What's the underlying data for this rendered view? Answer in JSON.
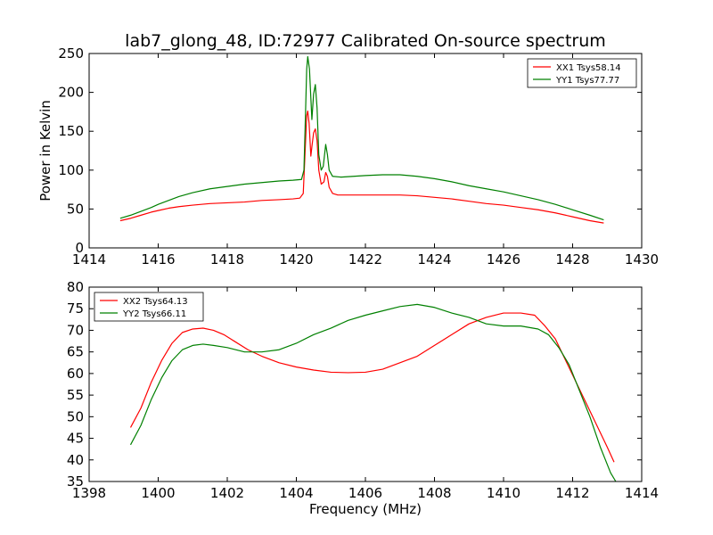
{
  "figure": {
    "title": "lab7_glong_48, ID:72977 Calibrated On-source spectrum",
    "xlabel": "Frequency (MHz)"
  },
  "chart_data": [
    {
      "type": "line",
      "title": "lab7_glong_48, ID:72977 Calibrated On-source spectrum",
      "xlabel": "",
      "ylabel": "Power in Kelvin",
      "xlim": [
        1414,
        1430
      ],
      "ylim": [
        0,
        250
      ],
      "xticks": [
        1414,
        1416,
        1418,
        1420,
        1422,
        1424,
        1426,
        1428,
        1430
      ],
      "yticks": [
        0,
        50,
        100,
        150,
        200,
        250
      ],
      "grid": false,
      "legend_position": "top-right",
      "series": [
        {
          "name": "XX1 Tsys58.14",
          "color": "#ff0000",
          "points": [
            [
              1414.9,
              35
            ],
            [
              1415.2,
              38
            ],
            [
              1415.5,
              42
            ],
            [
              1415.8,
              46
            ],
            [
              1416.0,
              48
            ],
            [
              1416.3,
              51
            ],
            [
              1416.6,
              53
            ],
            [
              1417.0,
              55
            ],
            [
              1417.5,
              57
            ],
            [
              1418.0,
              58
            ],
            [
              1418.5,
              59
            ],
            [
              1419.0,
              61
            ],
            [
              1419.5,
              62
            ],
            [
              1419.9,
              63
            ],
            [
              1420.1,
              64
            ],
            [
              1420.2,
              70
            ],
            [
              1420.25,
              120
            ],
            [
              1420.3,
              170
            ],
            [
              1420.33,
              176
            ],
            [
              1420.37,
              160
            ],
            [
              1420.42,
              118
            ],
            [
              1420.45,
              130
            ],
            [
              1420.5,
              148
            ],
            [
              1420.55,
              153
            ],
            [
              1420.6,
              138
            ],
            [
              1420.65,
              100
            ],
            [
              1420.72,
              82
            ],
            [
              1420.8,
              85
            ],
            [
              1420.85,
              97
            ],
            [
              1420.9,
              92
            ],
            [
              1420.95,
              78
            ],
            [
              1421.05,
              70
            ],
            [
              1421.2,
              68
            ],
            [
              1421.5,
              68
            ],
            [
              1422.0,
              68
            ],
            [
              1422.5,
              68
            ],
            [
              1423.0,
              68
            ],
            [
              1423.5,
              67
            ],
            [
              1424.0,
              65
            ],
            [
              1424.5,
              63
            ],
            [
              1425.0,
              60
            ],
            [
              1425.5,
              57
            ],
            [
              1426.0,
              55
            ],
            [
              1426.5,
              52
            ],
            [
              1427.0,
              49
            ],
            [
              1427.5,
              45
            ],
            [
              1428.0,
              40
            ],
            [
              1428.5,
              35
            ],
            [
              1428.9,
              32
            ]
          ]
        },
        {
          "name": "YY1 Tsys77.77",
          "color": "#008000",
          "points": [
            [
              1414.9,
              38
            ],
            [
              1415.2,
              42
            ],
            [
              1415.5,
              47
            ],
            [
              1415.8,
              52
            ],
            [
              1416.0,
              56
            ],
            [
              1416.3,
              61
            ],
            [
              1416.6,
              66
            ],
            [
              1417.0,
              71
            ],
            [
              1417.5,
              76
            ],
            [
              1418.0,
              79
            ],
            [
              1418.5,
              82
            ],
            [
              1419.0,
              84
            ],
            [
              1419.5,
              86
            ],
            [
              1419.9,
              87
            ],
            [
              1420.15,
              88
            ],
            [
              1420.22,
              100
            ],
            [
              1420.27,
              180
            ],
            [
              1420.3,
              230
            ],
            [
              1420.33,
              246
            ],
            [
              1420.38,
              230
            ],
            [
              1420.45,
              165
            ],
            [
              1420.5,
              198
            ],
            [
              1420.55,
              210
            ],
            [
              1420.6,
              180
            ],
            [
              1420.65,
              120
            ],
            [
              1420.72,
              100
            ],
            [
              1420.78,
              105
            ],
            [
              1420.85,
              133
            ],
            [
              1420.9,
              120
            ],
            [
              1420.95,
              100
            ],
            [
              1421.05,
              92
            ],
            [
              1421.3,
              91
            ],
            [
              1422.0,
              93
            ],
            [
              1422.5,
              94
            ],
            [
              1423.0,
              94
            ],
            [
              1423.5,
              92
            ],
            [
              1424.0,
              89
            ],
            [
              1424.5,
              85
            ],
            [
              1425.0,
              80
            ],
            [
              1425.5,
              76
            ],
            [
              1426.0,
              72
            ],
            [
              1426.5,
              67
            ],
            [
              1427.0,
              62
            ],
            [
              1427.5,
              56
            ],
            [
              1428.0,
              49
            ],
            [
              1428.5,
              42
            ],
            [
              1428.9,
              36
            ]
          ]
        }
      ]
    },
    {
      "type": "line",
      "title": "",
      "xlabel": "Frequency (MHz)",
      "ylabel": "",
      "xlim": [
        1398,
        1414
      ],
      "ylim": [
        35,
        80
      ],
      "xticks": [
        1398,
        1400,
        1402,
        1404,
        1406,
        1408,
        1410,
        1412,
        1414
      ],
      "yticks": [
        35,
        40,
        45,
        50,
        55,
        60,
        65,
        70,
        75,
        80
      ],
      "grid": false,
      "legend_position": "top-left",
      "series": [
        {
          "name": "XX2 Tsys64.13",
          "color": "#ff0000",
          "points": [
            [
              1399.2,
              47.5
            ],
            [
              1399.5,
              52
            ],
            [
              1399.8,
              58
            ],
            [
              1400.1,
              63
            ],
            [
              1400.4,
              67
            ],
            [
              1400.7,
              69.5
            ],
            [
              1401.0,
              70.3
            ],
            [
              1401.3,
              70.5
            ],
            [
              1401.6,
              70
            ],
            [
              1401.9,
              69
            ],
            [
              1402.2,
              67.5
            ],
            [
              1402.6,
              65.5
            ],
            [
              1403.0,
              64
            ],
            [
              1403.5,
              62.5
            ],
            [
              1404.0,
              61.5
            ],
            [
              1404.5,
              60.8
            ],
            [
              1405.0,
              60.3
            ],
            [
              1405.5,
              60.2
            ],
            [
              1406.0,
              60.3
            ],
            [
              1406.5,
              61
            ],
            [
              1407.0,
              62.5
            ],
            [
              1407.5,
              64
            ],
            [
              1408.0,
              66.5
            ],
            [
              1408.5,
              69
            ],
            [
              1409.0,
              71.5
            ],
            [
              1409.5,
              73
            ],
            [
              1410.0,
              74
            ],
            [
              1410.5,
              74
            ],
            [
              1410.9,
              73.5
            ],
            [
              1411.2,
              71
            ],
            [
              1411.5,
              68
            ],
            [
              1411.8,
              63
            ],
            [
              1412.1,
              58
            ],
            [
              1412.4,
              53
            ],
            [
              1412.7,
              48
            ],
            [
              1413.0,
              43
            ],
            [
              1413.2,
              39.5
            ]
          ]
        },
        {
          "name": "YY2 Tsys66.11",
          "color": "#008000",
          "points": [
            [
              1399.2,
              43.5
            ],
            [
              1399.5,
              48
            ],
            [
              1399.8,
              54
            ],
            [
              1400.1,
              59
            ],
            [
              1400.4,
              63
            ],
            [
              1400.7,
              65.5
            ],
            [
              1401.0,
              66.5
            ],
            [
              1401.3,
              66.8
            ],
            [
              1401.6,
              66.5
            ],
            [
              1402.0,
              66
            ],
            [
              1402.5,
              65
            ],
            [
              1403.0,
              65
            ],
            [
              1403.5,
              65.5
            ],
            [
              1404.0,
              67
            ],
            [
              1404.5,
              69
            ],
            [
              1405.0,
              70.5
            ],
            [
              1405.5,
              72.3
            ],
            [
              1406.0,
              73.5
            ],
            [
              1406.5,
              74.5
            ],
            [
              1407.0,
              75.5
            ],
            [
              1407.5,
              76
            ],
            [
              1408.0,
              75.3
            ],
            [
              1408.5,
              74
            ],
            [
              1409.0,
              73
            ],
            [
              1409.5,
              71.5
            ],
            [
              1410.0,
              71
            ],
            [
              1410.5,
              71
            ],
            [
              1411.0,
              70.3
            ],
            [
              1411.3,
              69
            ],
            [
              1411.6,
              66
            ],
            [
              1411.9,
              62
            ],
            [
              1412.2,
              56
            ],
            [
              1412.5,
              50
            ],
            [
              1412.8,
              43
            ],
            [
              1413.1,
              37
            ],
            [
              1413.25,
              35
            ]
          ]
        }
      ]
    }
  ]
}
